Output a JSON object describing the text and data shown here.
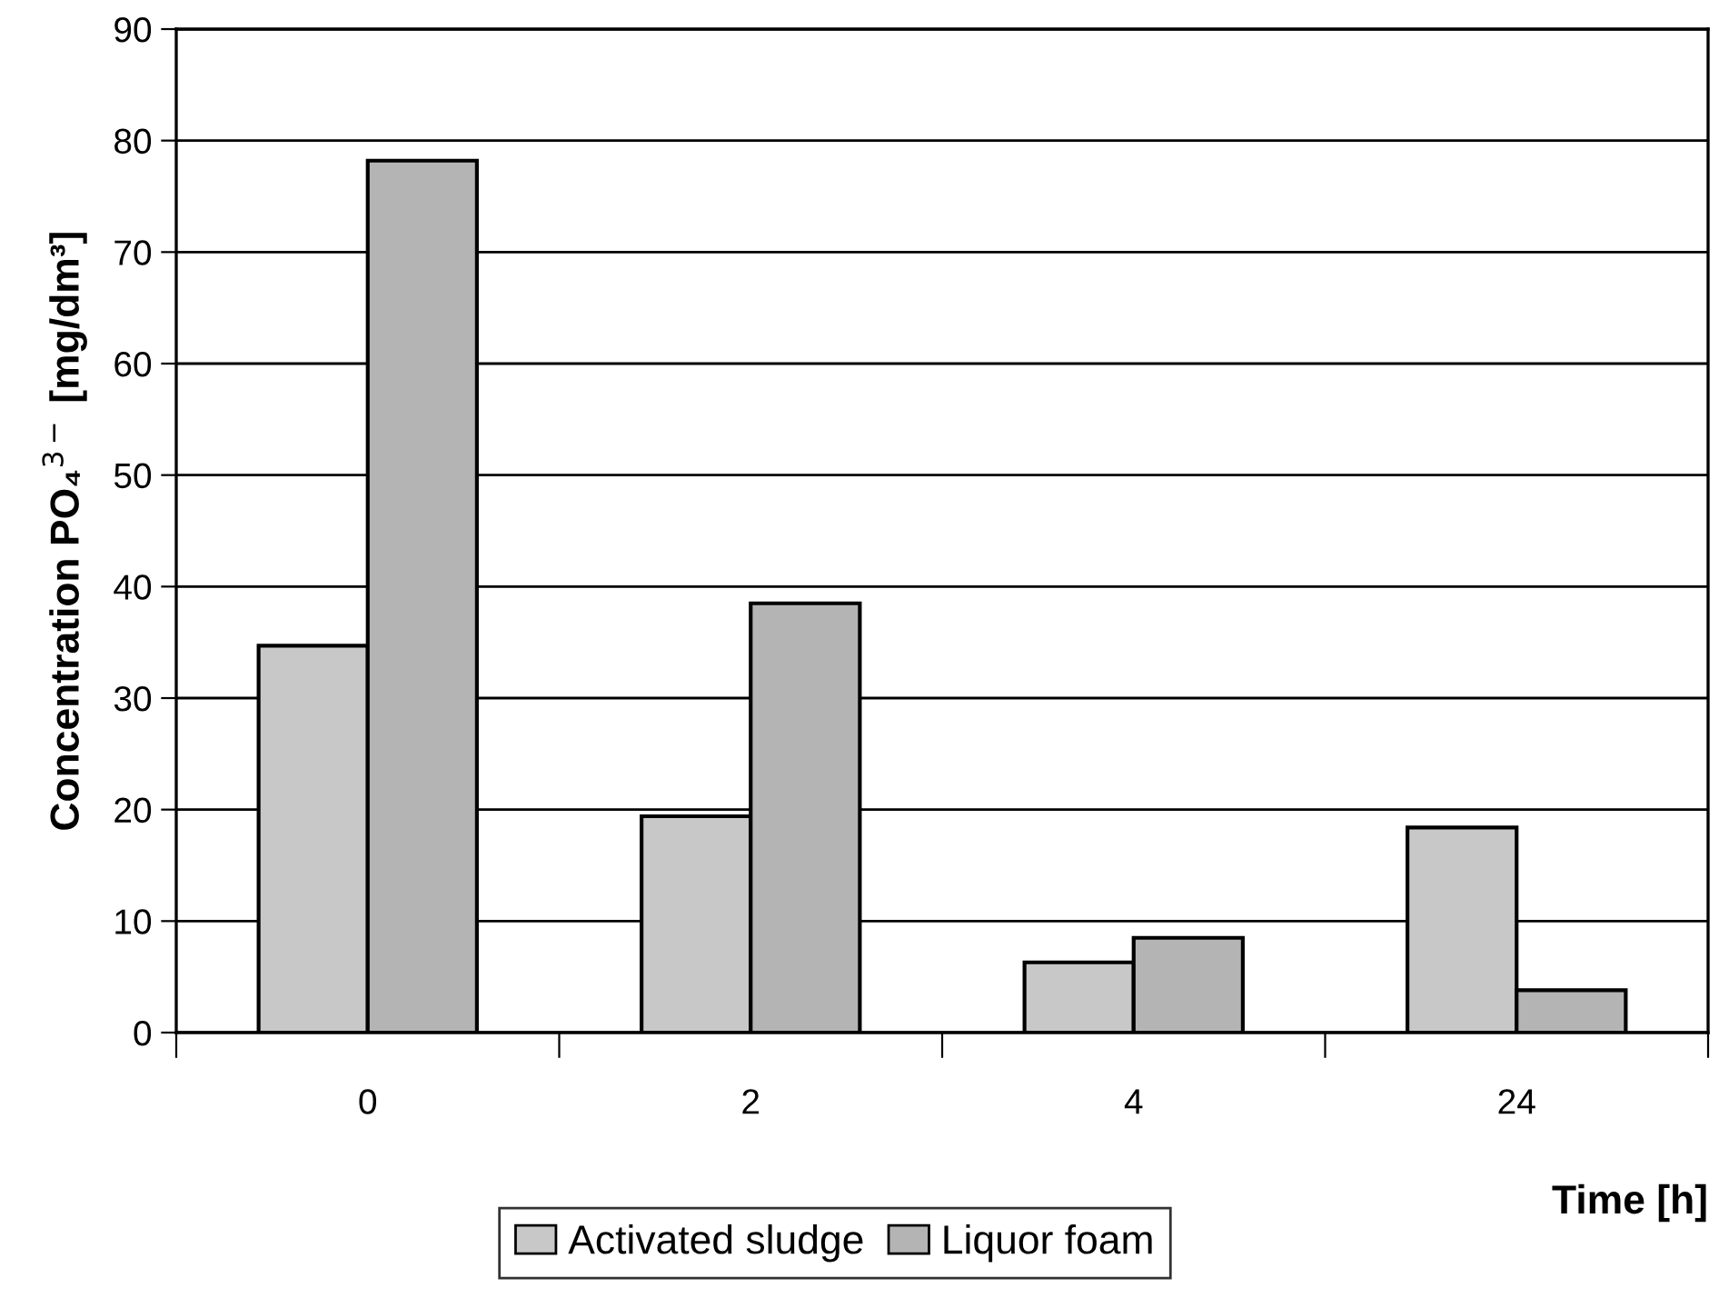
{
  "chart_data": {
    "type": "bar",
    "xlabel": "Time [h]",
    "ylabel": "Concentration PO₄$^{3−}$ [mg/dm³]",
    "categories": [
      "0",
      "2",
      "4",
      "24"
    ],
    "series": [
      {
        "name": "Activated sludge",
        "color": "#c8c8c8",
        "values": [
          34.7,
          19.4,
          6.3,
          18.4
        ]
      },
      {
        "name": "Liquor foam",
        "color": "#b4b4b4",
        "values": [
          78.2,
          38.5,
          8.5,
          3.8
        ]
      }
    ],
    "ylim": [
      0,
      90
    ],
    "yticks": [
      0,
      10,
      20,
      30,
      40,
      50,
      60,
      70,
      80,
      90
    ],
    "grid": "y",
    "legend": "bottom"
  }
}
